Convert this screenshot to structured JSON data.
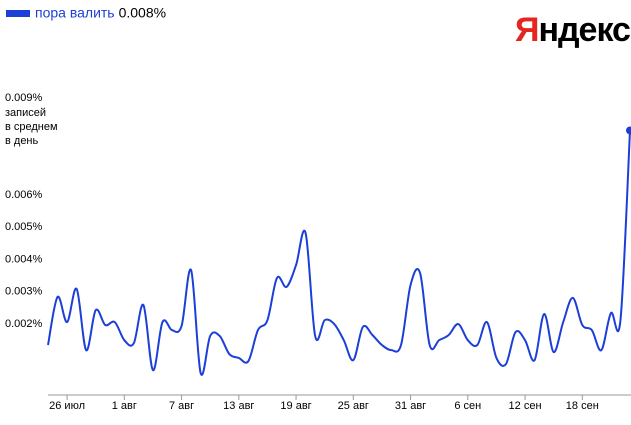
{
  "chart_data": {
    "type": "line",
    "logo": {
      "first": "Я",
      "rest": "ндекс"
    },
    "current_label": "0.008%",
    "y_label": [
      "записей",
      "в среднем",
      "в день"
    ],
    "categories": [
      null,
      null,
      "26 июл",
      null,
      null,
      null,
      null,
      null,
      "1 авг",
      null,
      null,
      null,
      null,
      null,
      "7 авг",
      null,
      null,
      null,
      null,
      null,
      "13 авг",
      null,
      null,
      null,
      null,
      null,
      "19 авг",
      null,
      null,
      null,
      null,
      null,
      "25 авг",
      null,
      null,
      null,
      null,
      null,
      "31 авг",
      null,
      null,
      null,
      null,
      null,
      "6 сен",
      null,
      null,
      null,
      null,
      null,
      "12 сен",
      null,
      null,
      null,
      null,
      null,
      "18 сен",
      null,
      null,
      null,
      null,
      null
    ],
    "series": [
      {
        "name": "пора валить",
        "color": "#1c3fd8",
        "values": [
          0.00135,
          0.00284,
          0.00206,
          0.00309,
          0.00119,
          0.00243,
          0.00197,
          0.00206,
          0.0015,
          0.00141,
          0.00259,
          0.00057,
          0.00206,
          0.00181,
          0.00194,
          0.00367,
          0.00048,
          0.00163,
          0.00163,
          0.00107,
          0.00095,
          0.00085,
          0.00181,
          0.00212,
          0.00343,
          0.00315,
          0.00383,
          0.00482,
          0.00163,
          0.00212,
          0.002,
          0.0015,
          0.00088,
          0.00191,
          0.00166,
          0.00135,
          0.00119,
          0.00135,
          0.00321,
          0.00358,
          0.00135,
          0.0015,
          0.00166,
          0.002,
          0.0015,
          0.00135,
          0.00206,
          0.00095,
          0.00076,
          0.00175,
          0.0015,
          0.00088,
          0.00231,
          0.00113,
          0.00206,
          0.00281,
          0.00197,
          0.00181,
          0.00119,
          0.00234,
          0.00212,
          0.008
        ]
      }
    ],
    "ylim": [
      -0.0002,
      0.0091
    ],
    "yticks": [
      {
        "value": 0.002,
        "label": "0.002%"
      },
      {
        "value": 0.003,
        "label": "0.003%"
      },
      {
        "value": 0.004,
        "label": "0.004%"
      },
      {
        "value": 0.005,
        "label": "0.005%"
      },
      {
        "value": 0.006,
        "label": "0.006%"
      },
      {
        "value": 0.009,
        "label": "0.009%"
      }
    ],
    "grid": false
  }
}
